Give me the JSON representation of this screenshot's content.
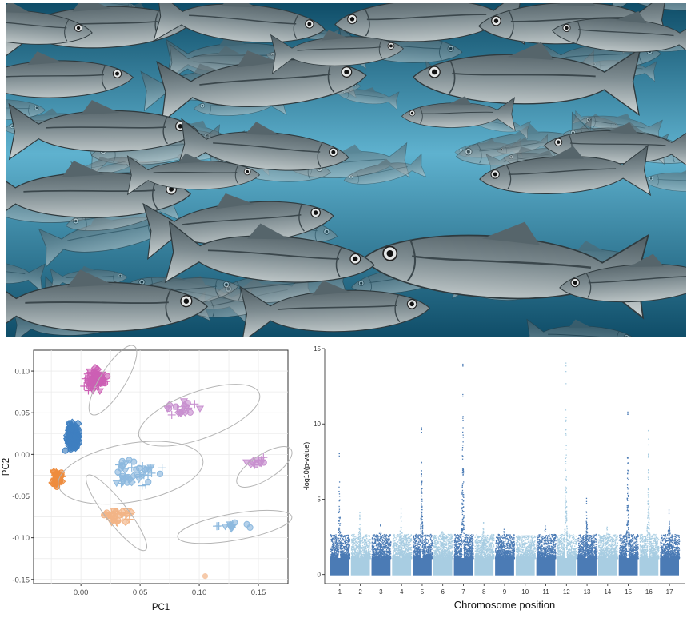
{
  "photo": {
    "subject": "school of sea bass swimming underwater",
    "colors": {
      "water_light": "#5fb2cf",
      "water_dark": "#0f4d68",
      "fish_body": "#7d8b90",
      "fish_belly": "#cfd6d6"
    }
  },
  "chart_data": [
    {
      "type": "scatter",
      "xlabel": "PC1",
      "ylabel": "PC2",
      "xlim": [
        -0.04,
        0.175
      ],
      "ylim": [
        -0.155,
        0.125
      ],
      "xticks": [
        "0.00",
        "0.05",
        "0.10",
        "0.15"
      ],
      "xtick_values": [
        0,
        0.05,
        0.1,
        0.15
      ],
      "yticks": [
        "0.10",
        "0.05",
        "0.00",
        "-0.05",
        "-0.10",
        "-0.15"
      ],
      "ytick_values": [
        0.1,
        0.05,
        0,
        -0.05,
        -0.1,
        -0.15
      ],
      "grid": true,
      "colors": {
        "magenta": "#cc5fb4",
        "lightpurple": "#c890cf",
        "blue": "#3f7fc0",
        "lightblue": "#8db9de",
        "orange": "#ee8c3e",
        "lightorange": "#f2b486",
        "ellipse": "#b4b4b4"
      },
      "clusters": [
        {
          "color": "magenta",
          "center": [
            0.013,
            0.088
          ],
          "spread": [
            0.007,
            0.009
          ],
          "n": 70,
          "seed": 11
        },
        {
          "color": "lightpurple",
          "center": [
            0.088,
            0.054
          ],
          "spread": [
            0.012,
            0.008
          ],
          "n": 20,
          "seed": 12
        },
        {
          "color": "lightpurple",
          "center": [
            0.148,
            -0.008
          ],
          "spread": [
            0.006,
            0.004
          ],
          "n": 14,
          "seed": 13
        },
        {
          "color": "blue",
          "center": [
            -0.007,
            0.022
          ],
          "spread": [
            0.004,
            0.012
          ],
          "n": 180,
          "seed": 14
        },
        {
          "color": "lightblue",
          "center": [
            0.045,
            -0.022
          ],
          "spread": [
            0.014,
            0.013
          ],
          "n": 45,
          "seed": 15
        },
        {
          "color": "lightblue",
          "center": [
            0.127,
            -0.086
          ],
          "spread": [
            0.01,
            0.004
          ],
          "n": 12,
          "seed": 16
        },
        {
          "color": "orange",
          "center": [
            -0.02,
            -0.029
          ],
          "spread": [
            0.003,
            0.007
          ],
          "n": 70,
          "seed": 17
        },
        {
          "color": "lightorange",
          "center": [
            0.03,
            -0.074
          ],
          "spread": [
            0.011,
            0.006
          ],
          "n": 35,
          "seed": 18
        }
      ],
      "outlier": {
        "x": 0.105,
        "y": -0.146,
        "color": "lightorange"
      },
      "ellipses": [
        {
          "cx": 0.027,
          "cy": 0.089,
          "rx": 0.034,
          "ry": 0.015,
          "angle": 58
        },
        {
          "cx": 0.1,
          "cy": 0.047,
          "rx": 0.054,
          "ry": 0.028,
          "angle": 20
        },
        {
          "cx": 0.155,
          "cy": -0.015,
          "rx": 0.027,
          "ry": 0.015,
          "angle": 33
        },
        {
          "cx": 0.042,
          "cy": -0.022,
          "rx": 0.062,
          "ry": 0.035,
          "angle": 10
        },
        {
          "cx": 0.03,
          "cy": -0.07,
          "rx": 0.04,
          "ry": 0.013,
          "angle": -52
        },
        {
          "cx": 0.13,
          "cy": -0.087,
          "rx": 0.049,
          "ry": 0.016,
          "angle": 10
        }
      ]
    },
    {
      "type": "scatter",
      "subtype": "manhattan",
      "xlabel": "Chromosome position",
      "ylabel": "-log10(p-value)",
      "ylim": [
        -0.6,
        15
      ],
      "yticks": [
        "0",
        "5",
        "10",
        "15"
      ],
      "ytick_values": [
        0,
        5,
        10,
        15
      ],
      "categories": [
        "1",
        "2",
        "3",
        "4",
        "5",
        "6",
        "7",
        "8",
        "9",
        "10",
        "11",
        "12",
        "13",
        "14",
        "15",
        "16",
        "17"
      ],
      "colors": {
        "dark": "#4b7bb5",
        "light": "#a8cde2"
      },
      "chromosomes": [
        {
          "label": "1",
          "peak": 8.1
        },
        {
          "label": "2",
          "peak": 4.3
        },
        {
          "label": "3",
          "peak": 3.5
        },
        {
          "label": "4",
          "peak": 4.4
        },
        {
          "label": "5",
          "peak": 9.9
        },
        {
          "label": "6",
          "peak": 3.1
        },
        {
          "label": "7",
          "peak": 14.4
        },
        {
          "label": "8",
          "peak": 3.9
        },
        {
          "label": "9",
          "peak": 3.1
        },
        {
          "label": "10",
          "peak": 2.6
        },
        {
          "label": "11",
          "peak": 3.3
        },
        {
          "label": "12",
          "peak": 14.1
        },
        {
          "label": "13",
          "peak": 5.1
        },
        {
          "label": "14",
          "peak": 3.6
        },
        {
          "label": "15",
          "peak": 10.9
        },
        {
          "label": "16",
          "peak": 9.6
        },
        {
          "label": "17",
          "peak": 4.5
        }
      ]
    }
  ]
}
